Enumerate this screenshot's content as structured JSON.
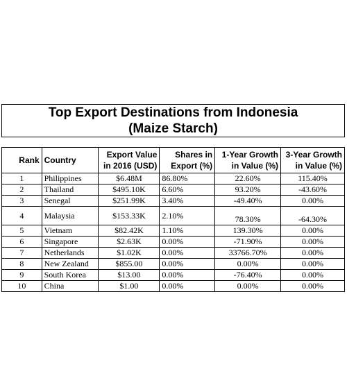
{
  "title": {
    "line1": "Top Export Destinations from Indonesia",
    "line2": "(Maize Starch)"
  },
  "columns": {
    "rank": "Rank",
    "country": "Country",
    "export_value_l1": "Export Value",
    "export_value_l2": "in 2016 (USD)",
    "share_l1": "Shares in",
    "share_l2": "Export (%)",
    "growth1_l1": "1-Year Growth",
    "growth1_l2": "in Value (%)",
    "growth3_l1": "3-Year Growth",
    "growth3_l2": "in Value (%)"
  },
  "rows": [
    {
      "rank": "1",
      "country": "Philippines",
      "value": "$6.48M",
      "share": "86.80%",
      "g1": "22.60%",
      "g3": "115.40%"
    },
    {
      "rank": "2",
      "country": "Thailand",
      "value": "$495.10K",
      "share": "6.60%",
      "g1": "93.20%",
      "g3": "-43.60%"
    },
    {
      "rank": "3",
      "country": "Senegal",
      "value": "$251.99K",
      "share": "3.40%",
      "g1": "-49.40%",
      "g3": "0.00%"
    },
    {
      "rank": "4",
      "country": "Malaysia",
      "value": "$153.33K",
      "share": "2.10%",
      "g1": "78.30%",
      "g3": "-64.30%"
    },
    {
      "rank": "5",
      "country": "Vietnam",
      "value": "$82.42K",
      "share": "1.10%",
      "g1": "139.30%",
      "g3": "0.00%"
    },
    {
      "rank": "6",
      "country": "Singapore",
      "value": "$2.63K",
      "share": "0.00%",
      "g1": "-71.90%",
      "g3": "0.00%"
    },
    {
      "rank": "7",
      "country": "Netherlands",
      "value": "$1.02K",
      "share": "0.00%",
      "g1": "33766.70%",
      "g3": "0.00%"
    },
    {
      "rank": "8",
      "country": "New Zealand",
      "value": "$855.00",
      "share": "0.00%",
      "g1": "0.00%",
      "g3": "0.00%"
    },
    {
      "rank": "9",
      "country": "South Korea",
      "value": "$13.00",
      "share": "0.00%",
      "g1": "-76.40%",
      "g3": "0.00%"
    },
    {
      "rank": "10",
      "country": "China",
      "value": "$1.00",
      "share": "0.00%",
      "g1": "0.00%",
      "g3": "0.00%"
    }
  ]
}
